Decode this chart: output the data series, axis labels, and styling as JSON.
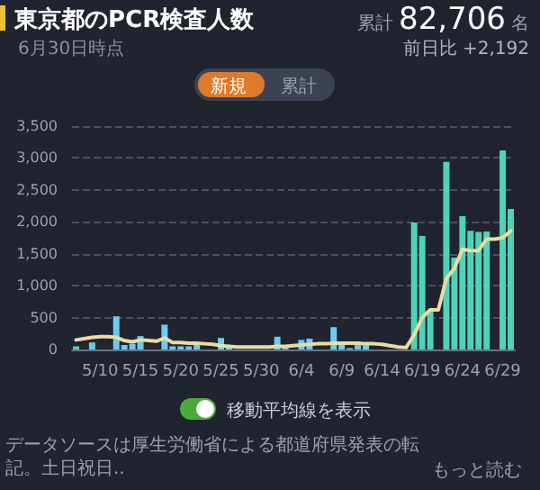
{
  "chart_data": {
    "type": "bar",
    "title": "東京都のPCR検査人数",
    "subtitle": "6月30日時点",
    "annotations": [
      "累計",
      "82,706",
      "名",
      "前日比 +2,192",
      "新規",
      "累計",
      "移動平均線を表示",
      "データソースは厚生労働省による都道府県発表の転記。土日祝日..",
      "もっと読む"
    ],
    "categories": [
      null,
      null,
      null,
      "5/10",
      null,
      null,
      null,
      null,
      "5/15",
      null,
      null,
      null,
      null,
      "5/20",
      null,
      null,
      null,
      null,
      "5/25",
      null,
      null,
      null,
      null,
      "5/30",
      null,
      null,
      null,
      null,
      "6/4",
      null,
      null,
      null,
      null,
      "6/9",
      null,
      null,
      null,
      null,
      "6/14",
      null,
      null,
      null,
      null,
      "6/19",
      null,
      null,
      null,
      null,
      "6/24",
      null,
      null,
      null,
      null,
      "6/29",
      null
    ],
    "series": [
      {
        "values": [
          50,
          null,
          110,
          null,
          null,
          520,
          70,
          90,
          210,
          null,
          null,
          390,
          50,
          50,
          50,
          80,
          null,
          null,
          180,
          30,
          null,
          null,
          null,
          null,
          null,
          200,
          30,
          null,
          150,
          170,
          null,
          null,
          350,
          90,
          20,
          70,
          70,
          null,
          null,
          null,
          null,
          null,
          1990,
          1780,
          620,
          null,
          2940,
          1440,
          2090,
          1860,
          1840,
          1850,
          null,
          3120,
          2200
        ],
        "colors": [
          "#4fd3b8",
          "#6ccbf2",
          "#6ccbf2",
          "#6ccbf2",
          "#6ccbf2",
          "#6ccbf2",
          "#6ccbf2",
          "#6ccbf2",
          "#6ccbf2",
          "#6ccbf2",
          "#6ccbf2",
          "#6ccbf2",
          "#6ccbf2",
          "#6ccbf2",
          "#6ccbf2",
          "#6ccbf2",
          "#6ccbf2",
          "#6ccbf2",
          "#6ccbf2",
          "#6ccbf2",
          "#6ccbf2",
          "#6ccbf2",
          "#6ccbf2",
          "#6ccbf2",
          "#6ccbf2",
          "#6ccbf2",
          "#6ccbf2",
          "#6ccbf2",
          "#6ccbf2",
          "#6ccbf2",
          "#6ccbf2",
          "#6ccbf2",
          "#6ccbf2",
          "#6ccbf2",
          "#6ccbf2",
          "#6ccbf2",
          "#6ccbf2",
          "#6ccbf2",
          "#6ccbf2",
          "#6ccbf2",
          "#6ccbf2",
          "#6ccbf2",
          "#4fd3b8",
          "#4fd3b8",
          "#4fd3b8",
          "#4fd3b8",
          "#4fd3b8",
          "#4fd3b8",
          "#4fd3b8",
          "#4fd3b8",
          "#4fd3b8",
          "#4fd3b8",
          "#4fd3b8",
          "#4fd3b8",
          "#4fd3b8"
        ]
      },
      {
        "type": "line",
        "color": "#eadcA0",
        "values": [
          150,
          170,
          190,
          200,
          200,
          190,
          140,
          120,
          150,
          140,
          130,
          180,
          110,
          110,
          100,
          100,
          90,
          80,
          60,
          50,
          40,
          40,
          40,
          40,
          40,
          50,
          50,
          60,
          70,
          80,
          90,
          90,
          100,
          100,
          100,
          100,
          90,
          90,
          80,
          60,
          40,
          30,
          230,
          500,
          620,
          620,
          1110,
          1270,
          1570,
          1550,
          1550,
          1730,
          1730,
          1750,
          1860
        ]
      }
    ],
    "ylim": [
      0,
      3500
    ],
    "yticks": [
      0,
      500,
      {
        "value": 1000,
        "label": "1,000"
      },
      {
        "value": 1500,
        "label": "1,500"
      },
      {
        "value": 2000,
        "label": "2,000"
      },
      {
        "value": 2500,
        "label": "2,500"
      },
      {
        "value": 3000,
        "label": "3,000"
      },
      {
        "value": 3500,
        "label": "3,500"
      }
    ],
    "grid": "y",
    "marker": "none",
    "line_style": "solid"
  }
}
